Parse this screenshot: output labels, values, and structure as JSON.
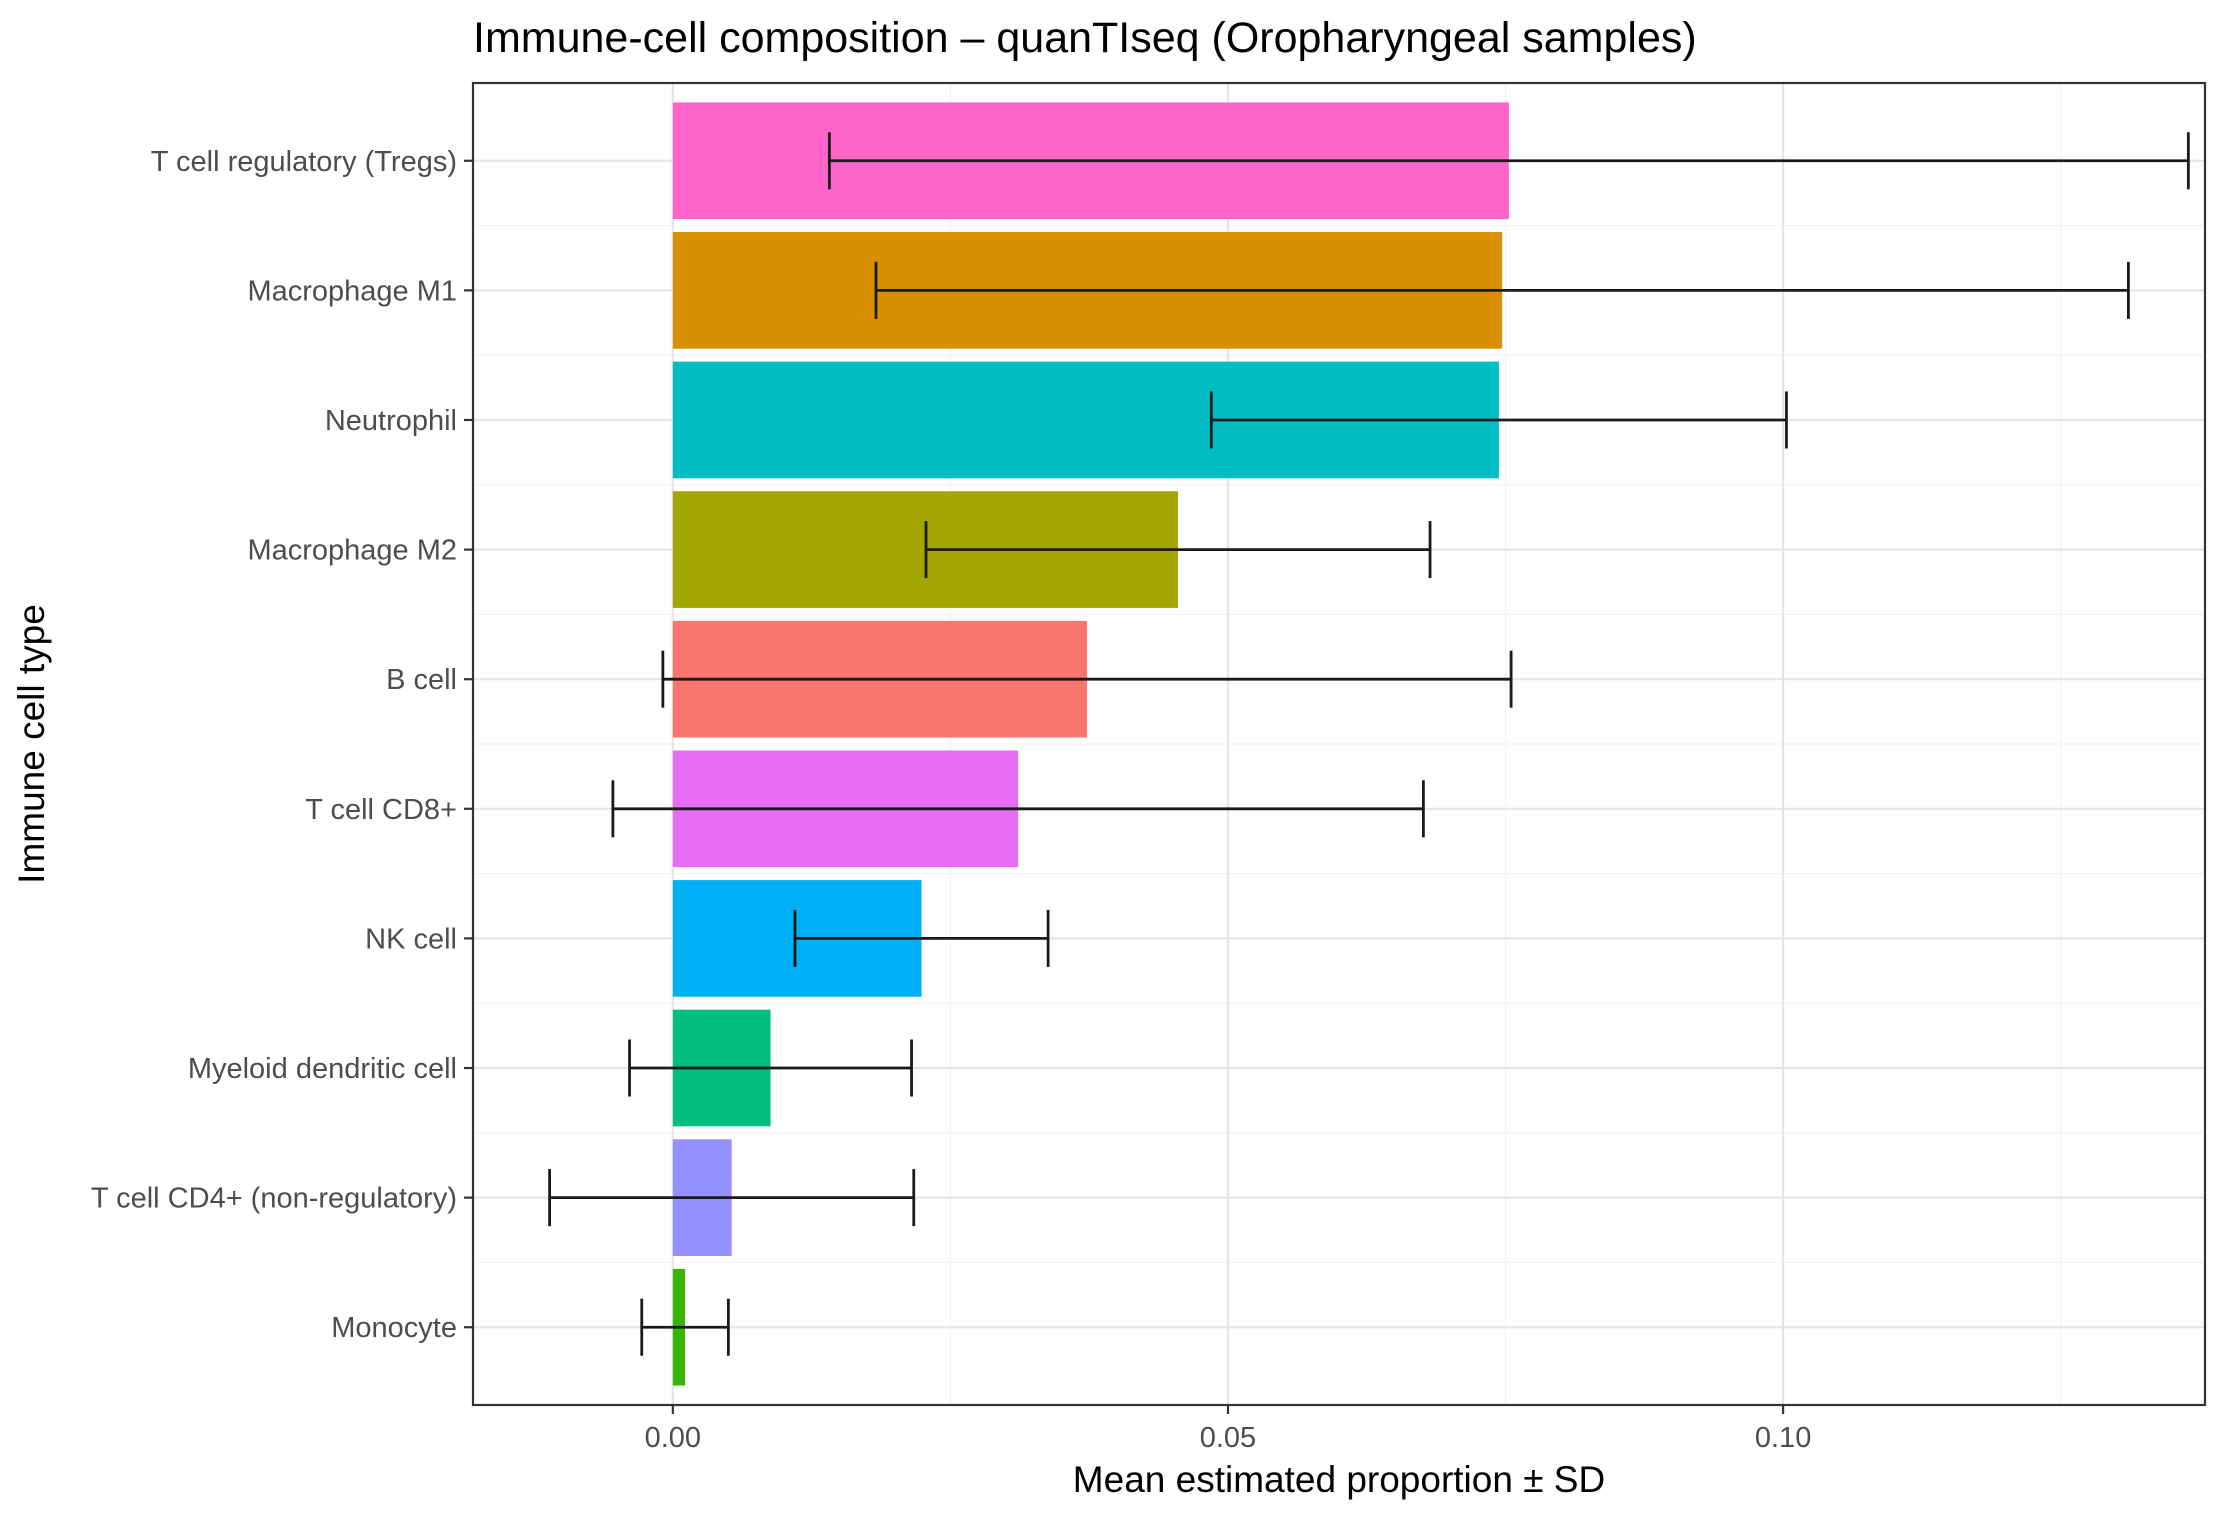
{
  "chart_data": {
    "type": "bar",
    "orientation": "horizontal",
    "title": "Immune-cell composition – quanTIseq (Oropharyngeal samples)",
    "xlabel": "Mean estimated proportion ± SD",
    "ylabel": "Immune cell type",
    "xlim": [
      -0.018,
      0.138
    ],
    "x_ticks": [
      0.0,
      0.05,
      0.1
    ],
    "x_tick_labels": [
      "0.00",
      "0.05",
      "0.10"
    ],
    "x_minor_ticks": [
      0.025,
      0.075,
      0.125
    ],
    "grid": true,
    "legend": "none",
    "bars": [
      {
        "category": "T cell regulatory (Tregs)",
        "mean": 0.0753,
        "sd": 0.0612,
        "color": "#FF64C8"
      },
      {
        "category": "Macrophage M1",
        "mean": 0.0747,
        "sd": 0.0564,
        "color": "#D88F00"
      },
      {
        "category": "Neutrophil",
        "mean": 0.0744,
        "sd": 0.0259,
        "color": "#00BEC4"
      },
      {
        "category": "Macrophage M2",
        "mean": 0.0455,
        "sd": 0.0227,
        "color": "#A3A500"
      },
      {
        "category": "B cell",
        "mean": 0.0373,
        "sd": 0.0382,
        "color": "#F8766D"
      },
      {
        "category": "T cell CD8+",
        "mean": 0.0311,
        "sd": 0.0365,
        "color": "#E76BF3"
      },
      {
        "category": "NK cell",
        "mean": 0.0224,
        "sd": 0.0114,
        "color": "#00B0F6"
      },
      {
        "category": "Myeloid dendritic cell",
        "mean": 0.0088,
        "sd": 0.0127,
        "color": "#00BF7D"
      },
      {
        "category": "T cell CD4+ (non-regulatory)",
        "mean": 0.0053,
        "sd": 0.0164,
        "color": "#9590FF"
      },
      {
        "category": "Monocyte",
        "mean": 0.0011,
        "sd": 0.0039,
        "color": "#39B600"
      }
    ]
  }
}
